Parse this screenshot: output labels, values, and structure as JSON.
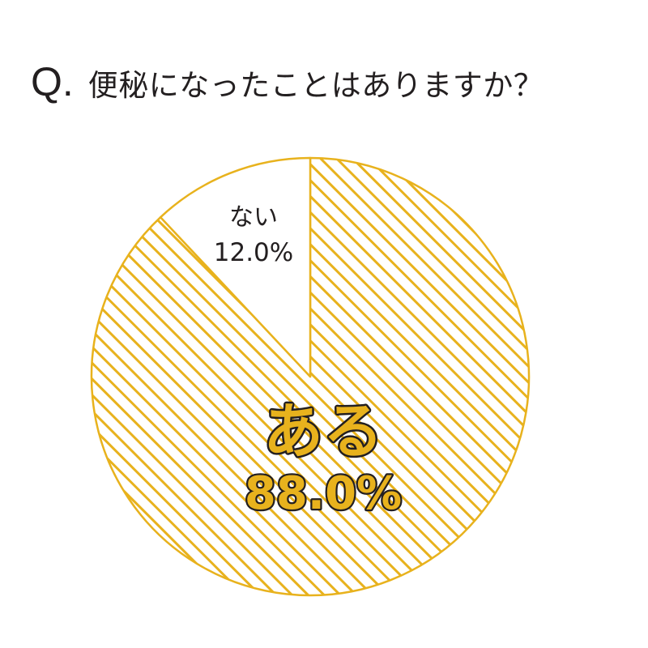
{
  "question": {
    "prefix": "Q.",
    "text": "便秘になったことはありますか？"
  },
  "colors": {
    "accent": "#e8b21d",
    "label_text": "#231f20",
    "outline": "#231f20",
    "background": "#ffffff"
  },
  "chart_data": {
    "type": "pie",
    "title": "Q. 便秘になったことはありますか？",
    "slices": [
      {
        "label": "ある",
        "value_text": "88.0%",
        "value": 88.0,
        "color": "#e8b21d",
        "fill": "hatched"
      },
      {
        "label": "ない",
        "value_text": "12.0%",
        "value": 12.0,
        "color": "#ffffff",
        "fill": "solid"
      }
    ],
    "start": "top",
    "direction": "clockwise"
  }
}
